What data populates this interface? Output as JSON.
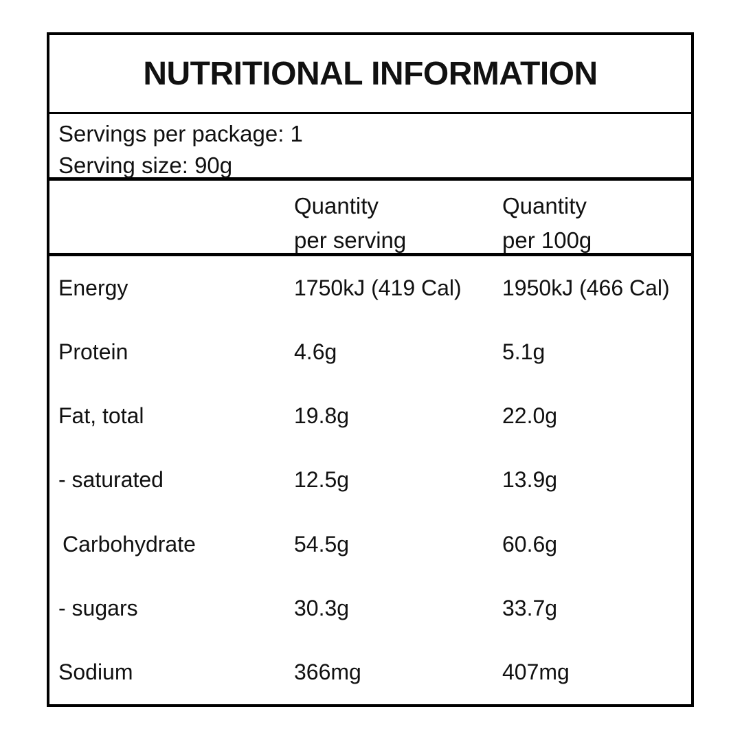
{
  "title": "NUTRITIONAL INFORMATION",
  "serving_info": {
    "servings_per_package": "Servings per package: 1",
    "serving_size": "Serving size: 90g"
  },
  "table": {
    "headers": [
      {
        "line1": "Quantity",
        "line2": "per serving"
      },
      {
        "line1": "Quantity",
        "line2": "per 100g"
      }
    ],
    "rows": [
      {
        "label": "Energy",
        "per_serving": "1750kJ (419 Cal)",
        "per_100g": "1950kJ (466 Cal)"
      },
      {
        "label": "Protein",
        "per_serving": "4.6g",
        "per_100g": "5.1g"
      },
      {
        "label": "Fat, total",
        "per_serving": "19.8g",
        "per_100g": "22.0g"
      },
      {
        "label": "- saturated",
        "per_serving": "12.5g",
        "per_100g": "13.9g"
      },
      {
        "label": "Carbohydrate",
        "per_serving": "54.5g",
        "per_100g": "60.6g"
      },
      {
        "label": "- sugars",
        "per_serving": "30.3g",
        "per_100g": "33.7g"
      },
      {
        "label": "Sodium",
        "per_serving": "366mg",
        "per_100g": "407mg"
      }
    ]
  },
  "colors": {
    "text": "#111111",
    "border": "#000000",
    "background": "#ffffff"
  }
}
